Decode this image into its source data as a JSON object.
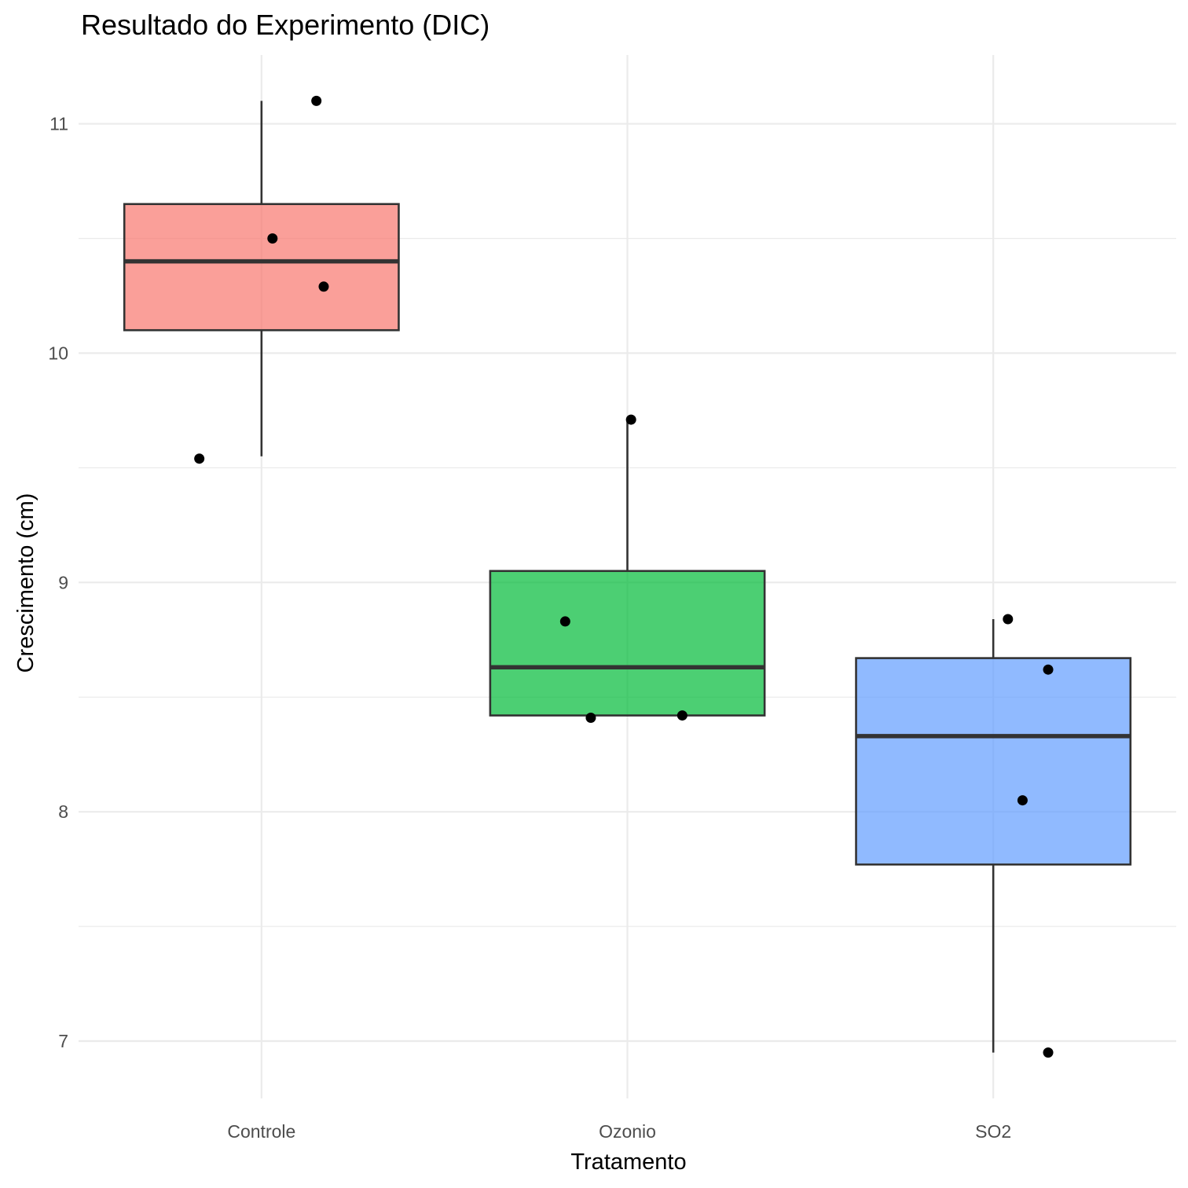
{
  "chart_data": {
    "type": "box",
    "title": "Resultado do Experimento (DIC)",
    "xlabel": "Tratamento",
    "ylabel": "Crescimento (cm)",
    "categories": [
      "Controle",
      "Ozonio",
      "SO2"
    ],
    "ylim": [
      6.75,
      11.3
    ],
    "yticks": [
      7,
      8,
      9,
      10,
      11
    ],
    "grid": true,
    "legend": "none",
    "boxes": [
      {
        "category": "Controle",
        "min": 9.55,
        "q1": 10.1,
        "median": 10.4,
        "q3": 10.65,
        "max": 11.1,
        "color": "#F8766D"
      },
      {
        "category": "Ozonio",
        "min": 8.42,
        "q1": 8.42,
        "median": 8.63,
        "q3": 9.05,
        "max": 9.71,
        "color": "#00BA38"
      },
      {
        "category": "SO2",
        "min": 6.95,
        "q1": 7.77,
        "median": 8.33,
        "q3": 8.67,
        "max": 8.84,
        "color": "#619CFF"
      }
    ],
    "points": [
      {
        "category": "Controle",
        "jitter": 0.15,
        "y": 11.1
      },
      {
        "category": "Controle",
        "jitter": 0.03,
        "y": 10.5
      },
      {
        "category": "Controle",
        "jitter": 0.17,
        "y": 10.29
      },
      {
        "category": "Controle",
        "jitter": -0.17,
        "y": 9.54
      },
      {
        "category": "Ozonio",
        "jitter": 0.01,
        "y": 9.71
      },
      {
        "category": "Ozonio",
        "jitter": -0.17,
        "y": 8.83
      },
      {
        "category": "Ozonio",
        "jitter": -0.1,
        "y": 8.41
      },
      {
        "category": "Ozonio",
        "jitter": 0.15,
        "y": 8.42
      },
      {
        "category": "SO2",
        "jitter": 0.04,
        "y": 8.84
      },
      {
        "category": "SO2",
        "jitter": 0.15,
        "y": 8.62
      },
      {
        "category": "SO2",
        "jitter": 0.08,
        "y": 8.05
      },
      {
        "category": "SO2",
        "jitter": 0.15,
        "y": 6.95
      }
    ]
  }
}
